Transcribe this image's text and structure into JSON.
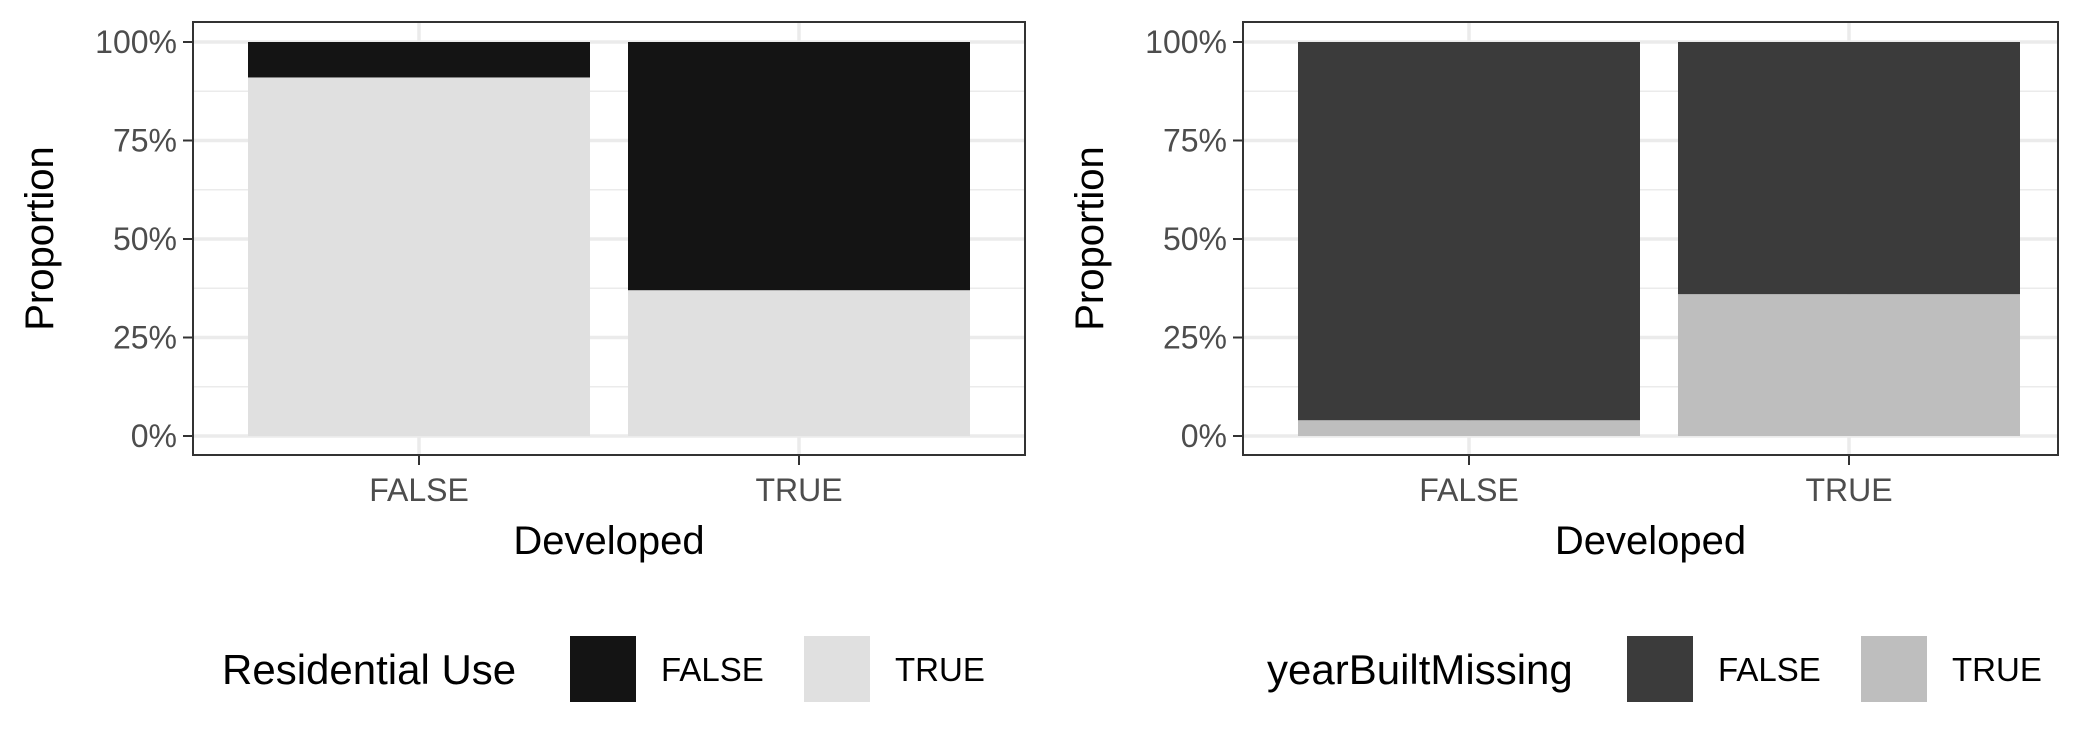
{
  "chart_data": [
    {
      "type": "bar",
      "stacked": true,
      "title": "",
      "xlabel": "Developed",
      "ylabel": "Proportion",
      "categories": [
        "FALSE",
        "TRUE"
      ],
      "ylim": [
        0,
        1
      ],
      "y_ticks": [
        "0%",
        "25%",
        "50%",
        "75%",
        "100%"
      ],
      "grid": true,
      "legend_position": "bottom",
      "legend_title": "Residential Use",
      "series": [
        {
          "name": "TRUE",
          "values": [
            0.91,
            0.37
          ],
          "color": "#e0e0e0"
        },
        {
          "name": "FALSE",
          "values": [
            0.09,
            0.63
          ],
          "color": "#141414"
        }
      ],
      "legend_items": [
        {
          "label": "FALSE",
          "color": "#141414"
        },
        {
          "label": "TRUE",
          "color": "#e0e0e0"
        }
      ]
    },
    {
      "type": "bar",
      "stacked": true,
      "title": "",
      "xlabel": "Developed",
      "ylabel": "Proportion",
      "categories": [
        "FALSE",
        "TRUE"
      ],
      "ylim": [
        0,
        1
      ],
      "y_ticks": [
        "0%",
        "25%",
        "50%",
        "75%",
        "100%"
      ],
      "grid": true,
      "legend_position": "bottom",
      "legend_title": "yearBuiltMissing",
      "series": [
        {
          "name": "TRUE",
          "values": [
            0.04,
            0.36
          ],
          "color": "#bebebe"
        },
        {
          "name": "FALSE",
          "values": [
            0.96,
            0.64
          ],
          "color": "#3b3b3b"
        }
      ],
      "legend_items": [
        {
          "label": "FALSE",
          "color": "#3b3b3b"
        },
        {
          "label": "TRUE",
          "color": "#bebebe"
        }
      ]
    }
  ]
}
